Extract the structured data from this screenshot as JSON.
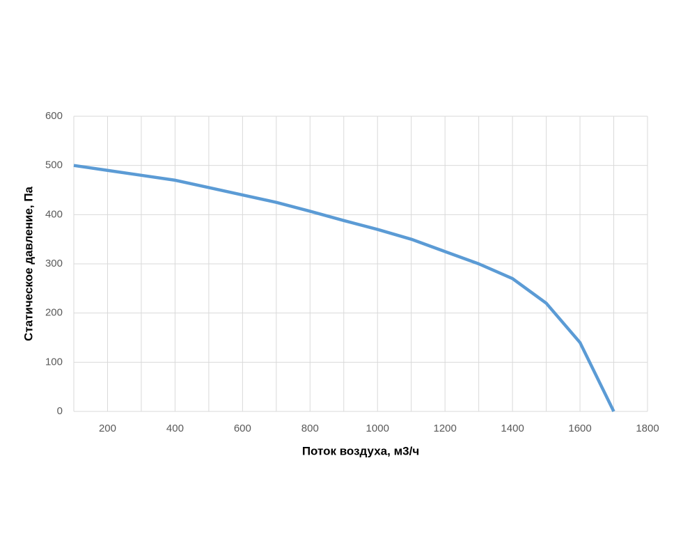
{
  "chart_data": {
    "type": "line",
    "x_label": "Поток воздуха, м3/ч",
    "y_label": "Статическое давление, Па",
    "x": [
      100,
      200,
      300,
      400,
      500,
      600,
      700,
      800,
      900,
      1000,
      1100,
      1200,
      1300,
      1400,
      1500,
      1600,
      1700
    ],
    "series": [
      {
        "color": "#5b9bd5",
        "values": [
          500,
          490,
          480,
          470,
          455,
          440,
          425,
          407,
          388,
          370,
          350,
          325,
          300,
          270,
          220,
          140,
          0
        ]
      }
    ],
    "xlim": [
      100,
      1800
    ],
    "xticks": [
      200,
      400,
      600,
      800,
      1000,
      1200,
      1400,
      1600,
      1800
    ],
    "x_minor_grid": [
      300,
      500,
      700,
      900,
      1100,
      1300,
      1500,
      1700
    ],
    "ylim": [
      0,
      600
    ],
    "yticks": [
      0,
      100,
      200,
      300,
      400,
      500,
      600
    ],
    "grid": true
  }
}
